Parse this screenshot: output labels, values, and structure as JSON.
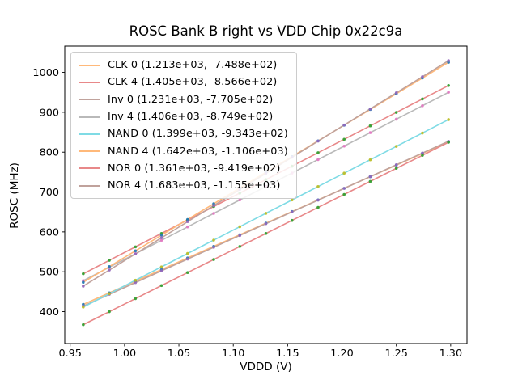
{
  "chart_data": {
    "type": "scatter-line",
    "title": "ROSC Bank B right vs VDD Chip 0x22c9a",
    "xlabel": "VDDD (V)",
    "ylabel": "ROSC (MHz)",
    "xlim": [
      0.945,
      1.315
    ],
    "ylim": [
      320,
      1066
    ],
    "grid": false,
    "legend_position": "upper-left",
    "xticks": [
      "0.95",
      "1.00",
      "1.05",
      "1.10",
      "1.15",
      "1.20",
      "1.25",
      "1.30"
    ],
    "yticks": [
      "400",
      "500",
      "600",
      "700",
      "800",
      "900",
      "1000"
    ],
    "x": [
      0.962,
      0.986,
      1.01,
      1.034,
      1.058,
      1.082,
      1.106,
      1.13,
      1.154,
      1.178,
      1.202,
      1.226,
      1.25,
      1.274,
      1.298
    ],
    "series": [
      {
        "name": "CLK 0",
        "legend_label": "CLK 0 (1.213e+03, -7.488e+02)",
        "fit_slope": 1213,
        "fit_intercept": -748.8,
        "line_color": "#ffb97a",
        "marker_color": "#1f77b4",
        "values": [
          418.1,
          447.2,
          476.3,
          505.4,
          534.6,
          563.7,
          592.8,
          621.9,
          651.0,
          680.1,
          709.2,
          738.3,
          767.5,
          796.6,
          825.7
        ]
      },
      {
        "name": "CLK 4",
        "legend_label": "CLK 4 (1.405e+03, -8.566e+02)",
        "fit_slope": 1405,
        "fit_intercept": -856.6,
        "line_color": "#e88889",
        "marker_color": "#2ca02c",
        "values": [
          495.0,
          528.7,
          562.5,
          596.2,
          629.9,
          663.6,
          697.3,
          731.1,
          764.8,
          798.5,
          832.2,
          865.9,
          899.7,
          933.4,
          967.1
        ]
      },
      {
        "name": "Inv 0",
        "legend_label": "Inv 0 (1.231e+03, -7.705e+02)",
        "fit_slope": 1231,
        "fit_intercept": -770.5,
        "line_color": "#c0a29c",
        "marker_color": "#9467bd",
        "values": [
          413.7,
          443.3,
          472.8,
          502.4,
          531.9,
          561.4,
          591.0,
          620.5,
          650.1,
          679.6,
          709.2,
          738.7,
          768.3,
          797.8,
          827.3
        ]
      },
      {
        "name": "Inv 4",
        "legend_label": "Inv 4 (1.406e+03, -8.749e+02)",
        "fit_slope": 1406,
        "fit_intercept": -874.9,
        "line_color": "#b9b9b9",
        "marker_color": "#e377c2",
        "values": [
          477.7,
          511.4,
          545.2,
          578.9,
          612.6,
          646.4,
          680.1,
          713.9,
          747.6,
          781.4,
          815.1,
          848.9,
          882.6,
          916.3,
          950.1
        ]
      },
      {
        "name": "NAND 0",
        "legend_label": "NAND 0 (1.399e+03, -9.343e+02)",
        "fit_slope": 1399,
        "fit_intercept": -934.3,
        "line_color": "#7fdbe5",
        "marker_color": "#bcbd22",
        "values": [
          411.5,
          445.1,
          478.7,
          512.3,
          545.8,
          579.4,
          613.0,
          646.6,
          680.1,
          713.7,
          747.3,
          780.9,
          814.5,
          848.0,
          881.6
        ]
      },
      {
        "name": "NAND 4",
        "legend_label": "NAND 4 (1.642e+03, -1.106e+03)",
        "fit_slope": 1642,
        "fit_intercept": -1106,
        "line_color": "#ffb97a",
        "marker_color": "#1f77b4",
        "values": [
          473.6,
          513.0,
          552.4,
          591.8,
          631.2,
          670.6,
          710.1,
          749.5,
          788.9,
          828.3,
          867.7,
          907.1,
          946.5,
          985.9,
          1025.3
        ]
      },
      {
        "name": "NOR 0",
        "legend_label": "NOR 0 (1.361e+03, -9.419e+02)",
        "fit_slope": 1361,
        "fit_intercept": -941.9,
        "line_color": "#e88889",
        "marker_color": "#2ca02c",
        "values": [
          367.4,
          400.0,
          432.7,
          465.4,
          498.0,
          530.7,
          563.4,
          596.0,
          628.7,
          661.4,
          694.0,
          726.7,
          759.4,
          792.0,
          824.7
        ]
      },
      {
        "name": "NOR 4",
        "legend_label": "NOR 4 (1.683e+03, -1.155e+03)",
        "fit_slope": 1683,
        "fit_intercept": -1155,
        "line_color": "#c0a29c",
        "marker_color": "#9467bd",
        "values": [
          464.0,
          504.4,
          544.8,
          585.2,
          625.6,
          666.0,
          706.4,
          746.8,
          787.2,
          827.6,
          868.0,
          908.4,
          948.8,
          989.1,
          1029.5
        ]
      }
    ]
  }
}
